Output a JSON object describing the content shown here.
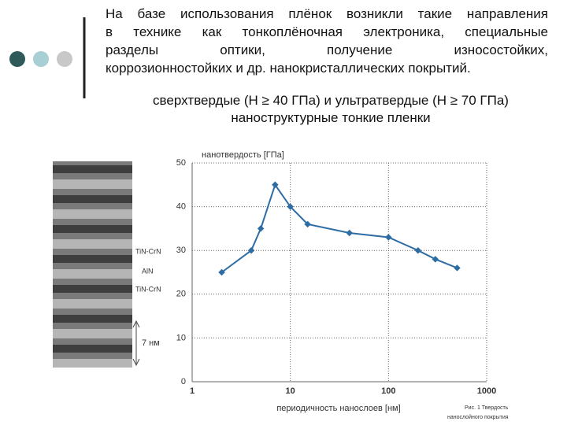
{
  "slide": {
    "text": {
      "lines": [
        "На базе использования плёнок возникли такие направления",
        "в технике как тонкоплёночная электроника, специальные",
        "разделы оптики, получение износостойких,",
        "коррозионностойких и др. нанокристаллических покрытий."
      ]
    },
    "subtitle": [
      "сверхтвердые (Н ≥ 40 ГПа) и ультратвердые (Н ≥ 70 ГПа)",
      "наноструктурные тонкие пленки"
    ],
    "micrograph": {
      "labels": [
        "TiN-CrN",
        "AlN",
        "TiN-CrN"
      ],
      "scale": "7 нм"
    },
    "caption": [
      "Рис. 1 Твердость",
      "нанослойного покрытия"
    ]
  },
  "chart_data": {
    "type": "line",
    "y_label": "нанотвердость [ГПа]",
    "x_label": "периодичность нанослоев [нм]",
    "x": [
      2,
      4,
      5,
      7,
      10,
      15,
      40,
      100,
      200,
      300,
      500
    ],
    "values": [
      25,
      30,
      35,
      45,
      40,
      36,
      34,
      33,
      30,
      28,
      26
    ],
    "color": "#2e6da4",
    "x_log": true,
    "xlim": [
      1,
      1000
    ],
    "xticks": [
      1,
      10,
      100,
      1000
    ],
    "ylim": [
      0,
      50
    ],
    "yticks": [
      0,
      10,
      20,
      30,
      40,
      50
    ],
    "grid": true
  }
}
